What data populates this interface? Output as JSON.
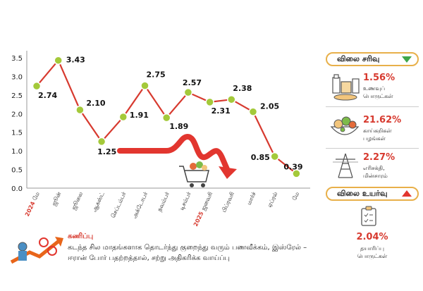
{
  "chart_data": {
    "type": "line",
    "ylim": [
      0,
      3.5
    ],
    "y_ticks": [
      "0.0",
      "0.5",
      "1.0",
      "1.5",
      "2.0",
      "2.5",
      "3.0",
      "3.5"
    ],
    "categories": [
      "2024 மே",
      "ஜூன்",
      "ஜூலை",
      "ஆகஸ்ட்",
      "செப்டம்பர்",
      "அக்டோபர்",
      "நவம்பர்",
      "டிசம்பர்",
      "2025 ஜனவரி",
      "பிப்ரவரி",
      "மார்ச்",
      "ஏப்ரல்",
      "மே"
    ],
    "values": [
      2.74,
      3.43,
      2.1,
      1.25,
      1.91,
      2.75,
      1.89,
      2.57,
      2.31,
      2.38,
      2.05,
      0.85,
      0.39
    ],
    "value_labels": [
      "2.74",
      "3.43",
      "2.10",
      "1.25",
      "1.91",
      "2.75",
      "1.89",
      "2.57",
      "2.31",
      "2.38",
      "2.05",
      "0.85",
      "0.39"
    ],
    "line_color": "#d73a2f",
    "marker_color": "#a4c93a",
    "grid": false
  },
  "side": {
    "fall_header": "விலை சரிவு",
    "fall_items": [
      {
        "pct": "1.56%",
        "label": "உணவுப்\nபொருட்கள்",
        "icon": "food-icon"
      },
      {
        "pct": "21.62%",
        "label": "காய்கறிகள்\nபழங்கள்",
        "icon": "vegetables-icon"
      },
      {
        "pct": "2.27%",
        "label": "எரிசக்தி,\nமின்சாரம்",
        "icon": "power-tower-icon"
      }
    ],
    "rise_header": "விலை உயர்வு",
    "rise_item": {
      "pct": "2.04%",
      "label": "தயாரிப்பு\nபொருட்கள்",
      "icon": "clipboard-icon"
    }
  },
  "forecast": {
    "title": "கணிப்பு",
    "text": "கடந்த சில மாதங்களாக தொடர்ந்து குறைந்து வரும் பணவீக்கம், இஸ்ரேல் – ஈரான் போர் பதற்றத்தால், சற்று அதிகரிக்க வாய்ப்பு"
  },
  "colors": {
    "accent": "#d73a2f",
    "header_border": "#e8b04a",
    "down": "#3fa64a",
    "up": "#e2362f"
  }
}
